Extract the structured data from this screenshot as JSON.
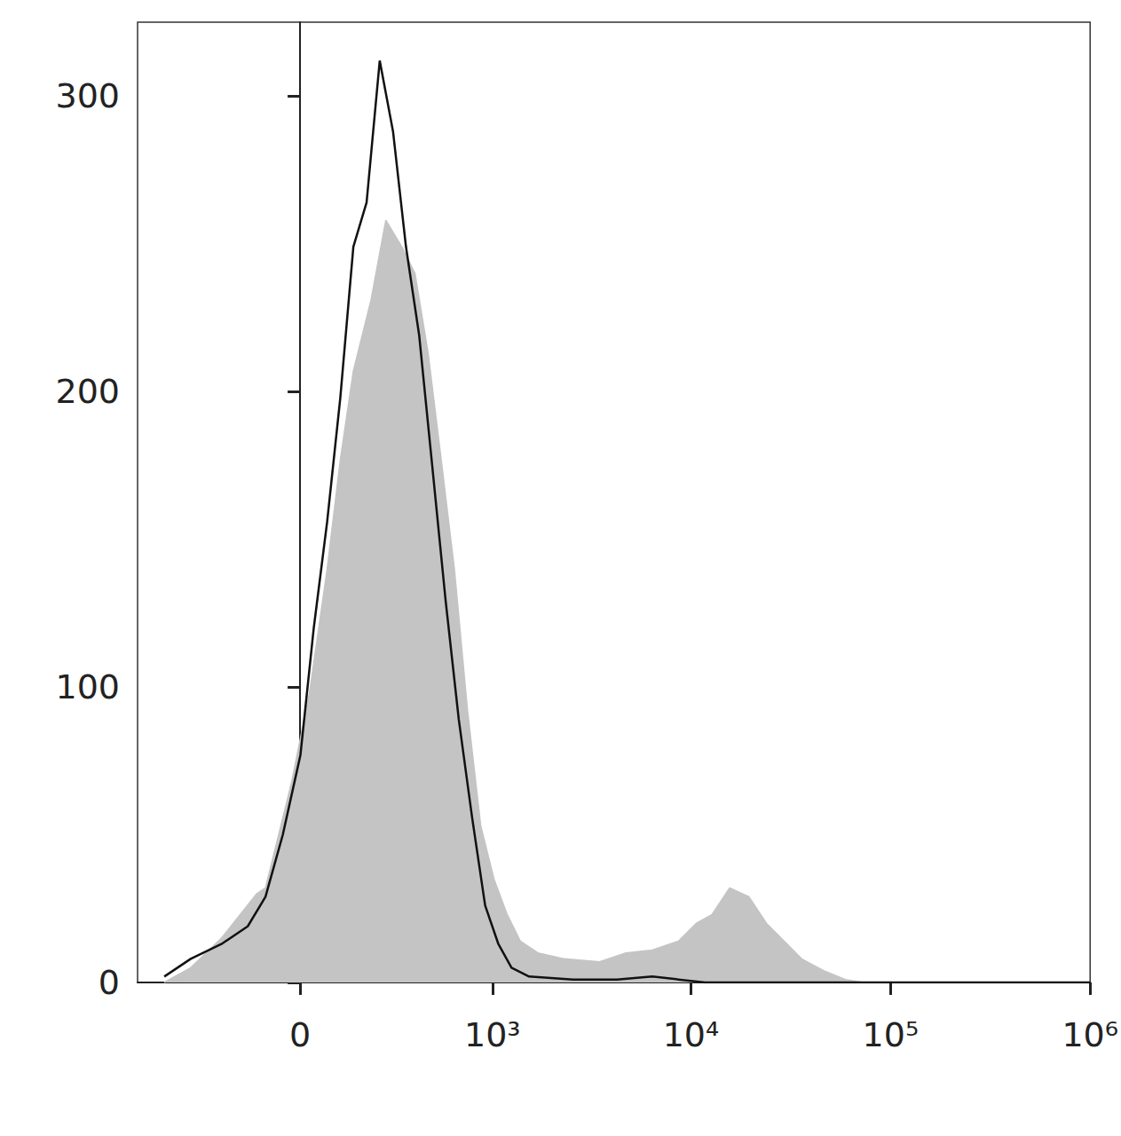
{
  "chart_data": {
    "type": "line",
    "log": "x",
    "grid": false,
    "xlim": [
      -700,
      1000000
    ],
    "xticks": [
      0,
      {
        "value": 1000,
        "label": "10³"
      },
      {
        "value": 10000,
        "label": "10⁴"
      },
      {
        "value": 100000,
        "label": "10⁵"
      },
      {
        "value": 1000000,
        "label": "10⁶"
      }
    ],
    "ylim": [
      0,
      325
    ],
    "yticks": [
      0,
      100,
      200,
      300
    ],
    "series": [
      {
        "type": "area",
        "color": "#c4c4c4",
        "x": [
          -504,
          -357,
          -228,
          -115,
          -90,
          -21,
          24,
          70,
          106,
          144,
          201,
          255,
          322,
          385,
          457,
          539,
          634,
          744,
          871,
          1019,
          1190,
          1388,
          1705,
          2314,
          3478,
          4717,
          6395,
          8668,
          10620,
          12750,
          15620,
          19520,
          23920,
          29260,
          35860,
          46200,
          59400,
          72800
        ],
        "values": [
          0,
          5,
          15,
          30,
          32,
          68,
          98,
          140,
          177,
          207,
          231,
          258,
          249,
          240,
          213,
          177,
          140,
          92,
          53,
          35,
          23,
          14,
          10,
          8,
          7,
          10,
          11,
          14,
          20,
          23,
          32,
          29,
          20,
          14,
          8,
          4,
          1,
          0
        ]
      },
      {
        "type": "line",
        "color": "#111111",
        "x": [
          -504,
          -357,
          -228,
          -141,
          -90,
          -44,
          1,
          35,
          70,
          106,
          144,
          186,
          232,
          284,
          341,
          407,
          483,
          570,
          669,
          785,
          918,
          1073,
          1252,
          1538,
          2563,
          4259,
          6395,
          11750,
          1000000
        ],
        "values": [
          2,
          8,
          13,
          19,
          29,
          50,
          77,
          120,
          156,
          198,
          249,
          264,
          312,
          288,
          249,
          219,
          174,
          129,
          89,
          56,
          26,
          13,
          5,
          2,
          1,
          1,
          2,
          0,
          0
        ]
      }
    ]
  }
}
